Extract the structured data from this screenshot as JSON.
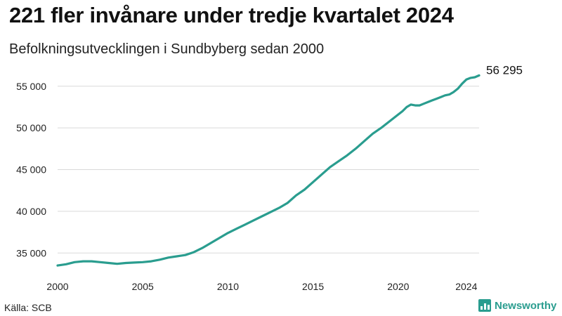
{
  "header": {
    "title": "221 fler invånare under tredje kvartalet 2024",
    "subtitle": "Befolkningsutvecklingen i Sundbyberg sedan 2000"
  },
  "footer": {
    "source": "Källa: SCB",
    "brand": "Newsworthy",
    "brand_color": "#2a9d8f"
  },
  "chart_data": {
    "type": "line",
    "title": "221 fler invånare under tredje kvartalet 2024",
    "subtitle": "Befolkningsutvecklingen i Sundbyberg sedan 2000",
    "xlabel": "",
    "ylabel": "",
    "xlim": [
      2000,
      2024.75
    ],
    "ylim": [
      33000,
      57000
    ],
    "x_ticks": [
      2000,
      2005,
      2010,
      2015,
      2020,
      2024
    ],
    "x_tick_labels": [
      "2000",
      "2005",
      "2010",
      "2015",
      "2020",
      "2024"
    ],
    "y_ticks": [
      35000,
      40000,
      45000,
      50000,
      55000
    ],
    "y_tick_labels": [
      "35 000",
      "40 000",
      "45 000",
      "50 000",
      "55 000"
    ],
    "grid": "horizontal",
    "line_color": "#2a9d8f",
    "end_label": "56 295",
    "series": [
      {
        "x": [
          2000,
          2000.5,
          2001,
          2001.5,
          2002,
          2002.5,
          2003,
          2003.5,
          2004,
          2004.5,
          2005,
          2005.5,
          2006,
          2006.5,
          2007,
          2007.5,
          2008,
          2008.5,
          2009,
          2009.5,
          2010,
          2010.5,
          2011,
          2011.5,
          2012,
          2012.5,
          2013,
          2013.5,
          2014,
          2014.5,
          2015,
          2015.5,
          2016,
          2016.5,
          2017,
          2017.5,
          2018,
          2018.5,
          2019,
          2019.5,
          2020,
          2020.25,
          2020.5,
          2020.75,
          2021,
          2021.25,
          2021.5,
          2021.75,
          2022,
          2022.25,
          2022.5,
          2022.75,
          2023,
          2023.25,
          2023.5,
          2023.75,
          2024,
          2024.25,
          2024.5,
          2024.75
        ],
        "values": [
          33500,
          33650,
          33900,
          34000,
          34000,
          33900,
          33800,
          33700,
          33800,
          33850,
          33900,
          34000,
          34200,
          34450,
          34600,
          34750,
          35100,
          35600,
          36200,
          36800,
          37400,
          37900,
          38400,
          38900,
          39400,
          39900,
          40400,
          41000,
          41900,
          42600,
          43500,
          44400,
          45300,
          46000,
          46700,
          47500,
          48400,
          49300,
          50000,
          50800,
          51600,
          52000,
          52500,
          52800,
          52700,
          52700,
          52900,
          53100,
          53300,
          53500,
          53700,
          53900,
          54000,
          54300,
          54700,
          55300,
          55800,
          56000,
          56074,
          56295
        ]
      }
    ]
  }
}
